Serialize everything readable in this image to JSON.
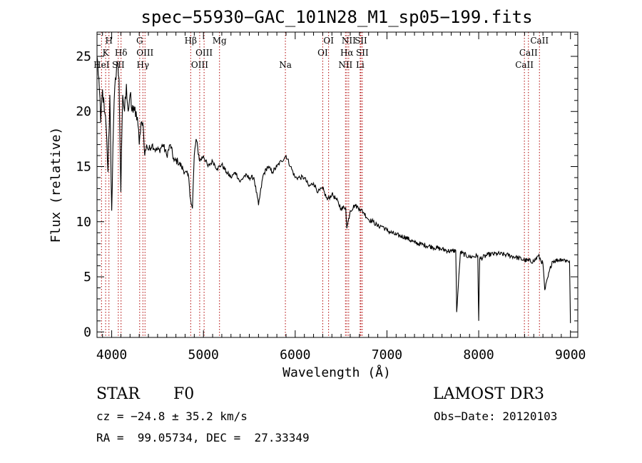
{
  "chart_data": {
    "type": "line",
    "title": "spec−55930−GAC_101N28_M1_sp05−199.fits",
    "xlabel": "Wavelength (Å)",
    "ylabel": "Flux (relative)",
    "xlim": [
      3840,
      9080
    ],
    "ylim": [
      -0.5,
      27.2
    ],
    "xticks": [
      4000,
      5000,
      6000,
      7000,
      8000,
      9000
    ],
    "yticks": [
      0,
      5,
      10,
      15,
      20,
      25
    ],
    "series": [
      {
        "name": "spectrum",
        "x": [
          3840,
          3860,
          3880,
          3900,
          3920,
          3940,
          3960,
          3980,
          4000,
          4020,
          4040,
          4060,
          4080,
          4100,
          4120,
          4140,
          4160,
          4180,
          4200,
          4220,
          4240,
          4260,
          4280,
          4300,
          4320,
          4340,
          4360,
          4380,
          4400,
          4440,
          4480,
          4520,
          4560,
          4600,
          4640,
          4680,
          4720,
          4760,
          4800,
          4840,
          4860,
          4880,
          4900,
          4920,
          4960,
          5000,
          5050,
          5100,
          5150,
          5200,
          5250,
          5300,
          5350,
          5400,
          5450,
          5500,
          5550,
          5600,
          5650,
          5700,
          5750,
          5800,
          5850,
          5900,
          5950,
          6000,
          6050,
          6100,
          6150,
          6200,
          6250,
          6300,
          6350,
          6400,
          6450,
          6500,
          6550,
          6563,
          6600,
          6650,
          6700,
          6750,
          6800,
          6850,
          6900,
          6950,
          7000,
          7100,
          7200,
          7300,
          7400,
          7500,
          7600,
          7700,
          7750,
          7760,
          7800,
          7900,
          7990,
          8000,
          8010,
          8100,
          8200,
          8300,
          8400,
          8500,
          8600,
          8650,
          8700,
          8720,
          8800,
          8900,
          8950,
          8990,
          9000
        ],
        "y": [
          25.0,
          23.0,
          19.0,
          22.0,
          20.0,
          18.5,
          14.5,
          21.5,
          11.0,
          19.0,
          23.0,
          24.5,
          23.0,
          12.7,
          21.5,
          20.0,
          22.5,
          20.0,
          21.5,
          20.0,
          20.5,
          19.5,
          19.5,
          17.0,
          19.0,
          19.0,
          16.0,
          17.0,
          16.5,
          17.0,
          16.5,
          16.5,
          17.0,
          16.0,
          17.0,
          15.5,
          15.5,
          15.0,
          14.5,
          14.0,
          12.0,
          11.2,
          16.0,
          17.5,
          15.5,
          16.0,
          15.0,
          15.5,
          14.8,
          15.2,
          14.5,
          14.0,
          14.5,
          13.6,
          14.2,
          14.0,
          14.0,
          11.5,
          14.2,
          15.0,
          14.5,
          15.0,
          15.5,
          16.0,
          15.0,
          14.0,
          14.0,
          14.0,
          13.2,
          13.5,
          12.7,
          13.0,
          12.0,
          12.5,
          12.0,
          11.2,
          11.3,
          9.4,
          11.0,
          11.5,
          11.2,
          10.8,
          10.2,
          10.0,
          9.6,
          9.6,
          9.2,
          8.8,
          8.6,
          8.1,
          7.9,
          7.7,
          7.5,
          7.3,
          7.4,
          1.8,
          7.2,
          6.8,
          6.9,
          1.0,
          6.6,
          7.0,
          7.1,
          7.0,
          6.8,
          6.5,
          6.4,
          6.9,
          6.2,
          3.8,
          6.4,
          6.6,
          6.5,
          6.4,
          0.8
        ]
      }
    ],
    "lines": [
      {
        "name": "Hε",
        "label": "H",
        "x": 3970,
        "row": 1
      },
      {
        "name": "CaK",
        "label": "K",
        "x": 3934,
        "row": 2
      },
      {
        "name": "HeI",
        "label": "HeI",
        "x": 3889,
        "row": 3
      },
      {
        "name": "Hδ",
        "label": "Hδ",
        "x": 4102,
        "row": 2
      },
      {
        "name": "SII",
        "label": "SII",
        "x": 4072,
        "row": 3
      },
      {
        "name": "G",
        "label": "G",
        "x": 4305,
        "row": 1
      },
      {
        "name": "OIII",
        "label": "OIII",
        "x": 4363,
        "row": 2
      },
      {
        "name": "Hγ",
        "label": "Hγ",
        "x": 4340,
        "row": 3
      },
      {
        "name": "Hβ",
        "label": "Hβ",
        "x": 4861,
        "row": 1
      },
      {
        "name": "OIII",
        "label": "OIII",
        "x": 5007,
        "row": 2
      },
      {
        "name": "OIII",
        "label": "OIII",
        "x": 4959,
        "row": 3
      },
      {
        "name": "Mg",
        "label": "Mg",
        "x": 5175,
        "row": 1
      },
      {
        "name": "Na",
        "label": "Na",
        "x": 5893,
        "row": 3
      },
      {
        "name": "OI",
        "label": "OI",
        "x": 6364,
        "row": 1
      },
      {
        "name": "OI",
        "label": "OI",
        "x": 6300,
        "row": 2
      },
      {
        "name": "NII",
        "label": "NII",
        "x": 6583,
        "row": 1
      },
      {
        "name": "SII",
        "label": "SII",
        "x": 6716,
        "row": 1
      },
      {
        "name": "Hα",
        "label": "Hα",
        "x": 6563,
        "row": 2
      },
      {
        "name": "SII",
        "label": "SII",
        "x": 6731,
        "row": 2
      },
      {
        "name": "NII",
        "label": "NII",
        "x": 6548,
        "row": 3
      },
      {
        "name": "Li",
        "label": "Li",
        "x": 6708,
        "row": 3
      },
      {
        "name": "CaII",
        "label": "CaII",
        "x": 8662,
        "row": 1
      },
      {
        "name": "CaII",
        "label": "CaII",
        "x": 8542,
        "row": 2
      },
      {
        "name": "CaII",
        "label": "CaII",
        "x": 8498,
        "row": 3
      }
    ]
  },
  "info": {
    "class_label": "STAR",
    "subclass": "F0",
    "survey": "LAMOST DR3",
    "redshift": "cz = −24.8 ± 35.2 km/s",
    "obs_date": "Obs−Date: 20120103",
    "coords": "RA =  99.05734, DEC =  27.33349"
  },
  "colors": {
    "spectrum": "#000000",
    "marker_lines": "#b00000"
  }
}
